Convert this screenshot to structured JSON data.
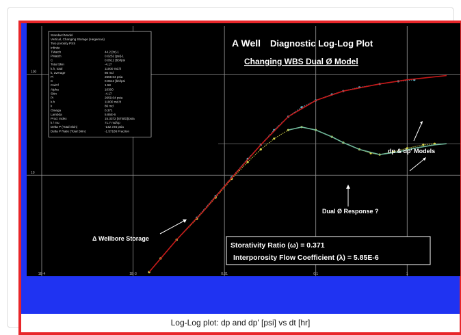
{
  "caption": "Log-Log plot: dp and dp' [psi] vs dt [hr]",
  "title": "A Well",
  "subtitle": "Diagnostic Log-Log Plot",
  "model_title": "Changing WBS Dual Ø Model",
  "annotations": {
    "models": "dp & dp' Models",
    "dual": "Dual Ø Response ?",
    "wbs": "Δ Wellbore Storage",
    "storativity": "Storativity Ratio  (ω) = 0.371",
    "interporosity": "Interporosity Flow Coefficient  (λ) = 5.85E-6"
  },
  "legend_box": {
    "header": [
      "Standard Model",
      "Vertical, Changing Storage (Hegeman)",
      "Two porosity PSS",
      "Infinite"
    ],
    "rows": [
      [
        "TMatch",
        "44.2 [hr]-1"
      ],
      [
        "PMatch",
        "0.0252 [psi]-1"
      ],
      [
        "C",
        "0.0612 [bbl/psi"
      ],
      [
        "Total Skin",
        "-4.17"
      ],
      [
        "k.h, total",
        "11000 md.ft"
      ],
      [
        "k, average",
        "86 md"
      ],
      [
        "Pi",
        "2659.04 psia"
      ],
      [
        "C",
        "0.0612 [bbl/psi"
      ],
      [
        "Ca/Cf",
        "1.58"
      ],
      [
        "Alpha",
        "10300"
      ],
      [
        "Skin",
        "-4.17"
      ],
      [
        "Pi",
        "2659.04 psia"
      ],
      [
        "k.h",
        "11000 md.ft"
      ],
      [
        "k",
        "86 md"
      ],
      [
        "Omega",
        "0.371"
      ],
      [
        "Lambda",
        "5.85E-6"
      ],
      [
        "Prod. Index",
        "15.3372 [STB/D]/psia"
      ],
      [
        "k / mu",
        "71.7 md/cp"
      ],
      [
        "Delta P (Total Skin)",
        "-142.725 psia"
      ],
      [
        "Delta P Ratio (Total Skin)",
        "-1.57186 Fraction"
      ]
    ]
  },
  "chart_data": {
    "type": "scatter",
    "x_scale": "log",
    "y_scale": "log",
    "xlim": [
      0.0001,
      3
    ],
    "ylim": [
      1,
      300
    ],
    "x_ticks": [
      "1E-4",
      "1E-3",
      "0.01",
      "0.1",
      "1"
    ],
    "y_ticks": [
      "100",
      "10"
    ],
    "series": [
      {
        "name": "dp",
        "color": "#5bb6c8",
        "x": [
          0.0015,
          0.002,
          0.003,
          0.005,
          0.008,
          0.012,
          0.018,
          0.025,
          0.035,
          0.05,
          0.07,
          0.1,
          0.15,
          0.2,
          0.3,
          0.5,
          0.8,
          1.2
        ],
        "y": [
          1.1,
          1.5,
          2.3,
          3.8,
          6.2,
          9.5,
          14.5,
          20,
          28,
          38,
          47,
          55,
          63,
          68,
          74,
          80,
          85,
          88
        ]
      },
      {
        "name": "dp'",
        "color": "#d8d84a",
        "x": [
          0.0015,
          0.002,
          0.003,
          0.005,
          0.008,
          0.012,
          0.018,
          0.025,
          0.035,
          0.05,
          0.07,
          0.1,
          0.15,
          0.2,
          0.3,
          0.4,
          0.5,
          0.7,
          1.0,
          1.5,
          2.0
        ],
        "y": [
          1.1,
          1.5,
          2.3,
          3.7,
          6,
          9.2,
          13.5,
          18,
          23,
          28,
          30,
          28,
          24,
          21,
          18,
          16.5,
          16,
          17,
          18.5,
          20,
          20.5
        ]
      },
      {
        "name": "dp model",
        "color": "#c81818",
        "x": [
          0.0015,
          0.003,
          0.006,
          0.012,
          0.025,
          0.05,
          0.1,
          0.2,
          0.5,
          1,
          2.7
        ],
        "y": [
          1.1,
          2.3,
          4.5,
          9.4,
          20,
          38,
          55,
          68,
          80,
          88,
          97
        ]
      },
      {
        "name": "dp' model",
        "color": "#6fb79a",
        "x": [
          0.05,
          0.07,
          0.1,
          0.15,
          0.2,
          0.3,
          0.5,
          0.8,
          1.2,
          2.0,
          2.7
        ],
        "y": [
          28,
          30,
          28,
          24,
          21,
          18,
          16,
          17,
          18.5,
          20,
          20.5
        ]
      }
    ]
  }
}
